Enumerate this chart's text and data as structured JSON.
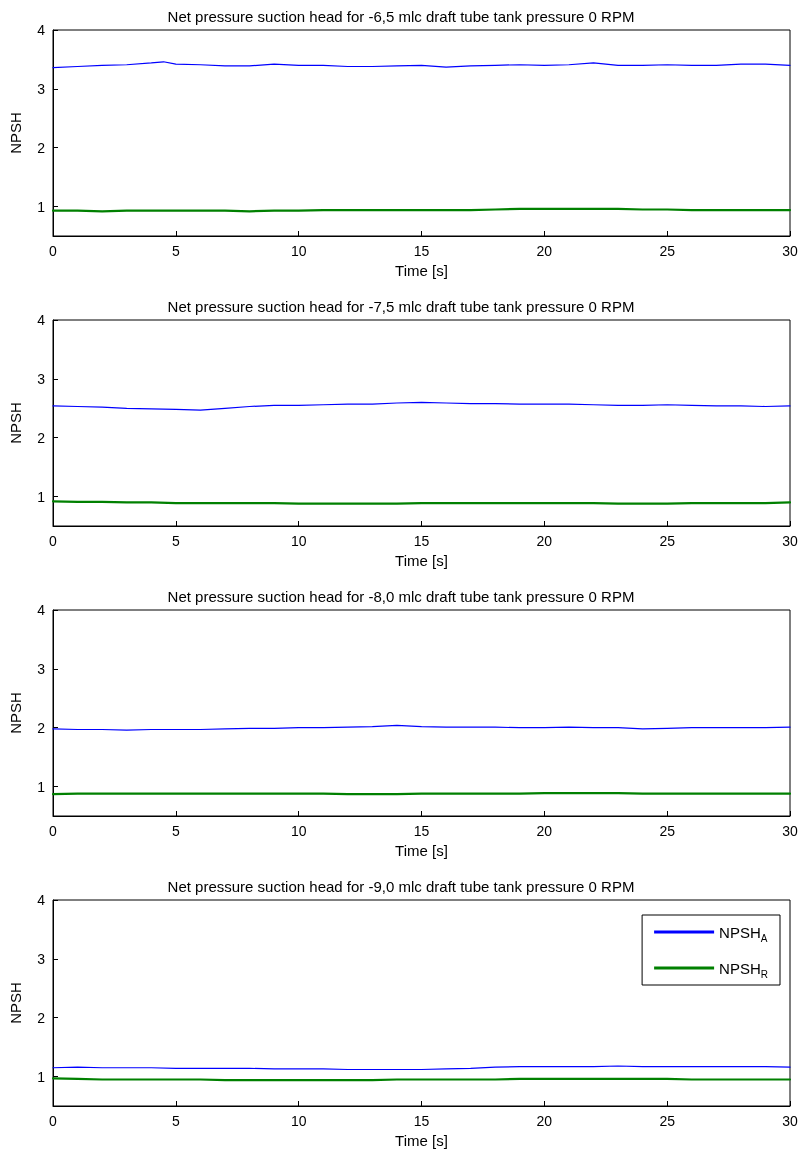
{
  "chart_data": [
    {
      "type": "line",
      "title": "Net pressure suction head for -6,5 mlc draft tube tank pressure 0 RPM",
      "xlabel": "Time [s]",
      "ylabel": "NPSH",
      "xlim": [
        0,
        30
      ],
      "xticks": [
        0,
        5,
        10,
        15,
        20,
        25,
        30
      ],
      "ylim": [
        0.5,
        4
      ],
      "yticks": [
        1,
        2,
        3,
        4
      ],
      "legend": false,
      "x": [
        0,
        1,
        2,
        3,
        4,
        4.5,
        5,
        6,
        7,
        8,
        9,
        10,
        11,
        12,
        13,
        14,
        15,
        16,
        17,
        18,
        19,
        20,
        21,
        22,
        23,
        24,
        25,
        26,
        27,
        28,
        29,
        30
      ],
      "series": [
        {
          "color": "#0000ff",
          "values": [
            3.36,
            3.38,
            3.4,
            3.41,
            3.44,
            3.46,
            3.42,
            3.41,
            3.39,
            3.39,
            3.42,
            3.4,
            3.4,
            3.38,
            3.38,
            3.39,
            3.4,
            3.37,
            3.39,
            3.4,
            3.41,
            3.4,
            3.41,
            3.44,
            3.4,
            3.4,
            3.41,
            3.4,
            3.4,
            3.42,
            3.42,
            3.4
          ]
        },
        {
          "color": "#008000",
          "values": [
            0.93,
            0.93,
            0.92,
            0.93,
            0.93,
            0.93,
            0.93,
            0.93,
            0.93,
            0.92,
            0.93,
            0.93,
            0.94,
            0.94,
            0.94,
            0.94,
            0.94,
            0.94,
            0.94,
            0.95,
            0.96,
            0.96,
            0.96,
            0.96,
            0.96,
            0.95,
            0.95,
            0.94,
            0.94,
            0.94,
            0.94,
            0.94
          ]
        }
      ]
    },
    {
      "type": "line",
      "title": "Net pressure suction head for -7,5 mlc draft tube tank pressure 0 RPM",
      "xlabel": "Time [s]",
      "ylabel": "NPSH",
      "xlim": [
        0,
        30
      ],
      "xticks": [
        0,
        5,
        10,
        15,
        20,
        25,
        30
      ],
      "ylim": [
        0.5,
        4
      ],
      "yticks": [
        1,
        2,
        3,
        4
      ],
      "legend": false,
      "x": [
        0,
        1,
        2,
        3,
        4,
        5,
        6,
        7,
        8,
        9,
        10,
        11,
        12,
        13,
        14,
        15,
        16,
        17,
        18,
        19,
        20,
        21,
        22,
        23,
        24,
        25,
        26,
        27,
        28,
        29,
        30
      ],
      "series": [
        {
          "color": "#0000ff",
          "values": [
            2.54,
            2.53,
            2.52,
            2.5,
            2.49,
            2.48,
            2.47,
            2.5,
            2.53,
            2.55,
            2.55,
            2.56,
            2.57,
            2.57,
            2.59,
            2.6,
            2.59,
            2.58,
            2.58,
            2.57,
            2.57,
            2.57,
            2.56,
            2.55,
            2.55,
            2.56,
            2.55,
            2.54,
            2.54,
            2.53,
            2.54
          ]
        },
        {
          "color": "#008000",
          "values": [
            0.92,
            0.91,
            0.91,
            0.9,
            0.9,
            0.89,
            0.89,
            0.89,
            0.89,
            0.89,
            0.88,
            0.88,
            0.88,
            0.88,
            0.88,
            0.89,
            0.89,
            0.89,
            0.89,
            0.89,
            0.89,
            0.89,
            0.89,
            0.88,
            0.88,
            0.88,
            0.89,
            0.89,
            0.89,
            0.89,
            0.9
          ]
        }
      ]
    },
    {
      "type": "line",
      "title": "Net pressure suction head for -8,0 mlc draft tube tank pressure 0 RPM",
      "xlabel": "Time [s]",
      "ylabel": "NPSH",
      "xlim": [
        0,
        30
      ],
      "xticks": [
        0,
        5,
        10,
        15,
        20,
        25,
        30
      ],
      "ylim": [
        0.5,
        4
      ],
      "yticks": [
        1,
        2,
        3,
        4
      ],
      "legend": false,
      "x": [
        0,
        1,
        2,
        3,
        4,
        5,
        6,
        7,
        8,
        9,
        10,
        11,
        12,
        13,
        14,
        15,
        16,
        17,
        18,
        19,
        20,
        21,
        22,
        23,
        24,
        25,
        26,
        27,
        28,
        29,
        30
      ],
      "series": [
        {
          "color": "#0000ff",
          "values": [
            1.98,
            1.97,
            1.97,
            1.96,
            1.97,
            1.97,
            1.97,
            1.98,
            1.99,
            1.99,
            2.0,
            2.0,
            2.01,
            2.02,
            2.04,
            2.02,
            2.01,
            2.01,
            2.01,
            2.0,
            2.0,
            2.01,
            2.0,
            2.0,
            1.98,
            1.99,
            2.0,
            2.0,
            2.0,
            2.0,
            2.01
          ]
        },
        {
          "color": "#008000",
          "values": [
            0.87,
            0.88,
            0.88,
            0.88,
            0.88,
            0.88,
            0.88,
            0.88,
            0.88,
            0.88,
            0.88,
            0.88,
            0.87,
            0.87,
            0.87,
            0.88,
            0.88,
            0.88,
            0.88,
            0.88,
            0.89,
            0.89,
            0.89,
            0.89,
            0.88,
            0.88,
            0.88,
            0.88,
            0.88,
            0.88,
            0.88
          ]
        }
      ]
    },
    {
      "type": "line",
      "title": "Net pressure suction head for -9,0 mlc draft tube tank pressure 0 RPM",
      "xlabel": "Time [s]",
      "ylabel": "NPSH",
      "xlim": [
        0,
        30
      ],
      "xticks": [
        0,
        5,
        10,
        15,
        20,
        25,
        30
      ],
      "ylim": [
        0.5,
        4
      ],
      "yticks": [
        1,
        2,
        3,
        4
      ],
      "legend": "top right",
      "x": [
        0,
        1,
        2,
        3,
        4,
        5,
        6,
        7,
        8,
        9,
        10,
        11,
        12,
        13,
        14,
        15,
        16,
        17,
        18,
        19,
        20,
        21,
        22,
        23,
        24,
        25,
        26,
        27,
        28,
        29,
        30
      ],
      "series": [
        {
          "name": "NPSH$_{A}$",
          "color": "#0000ff",
          "values": [
            1.15,
            1.16,
            1.15,
            1.15,
            1.15,
            1.14,
            1.14,
            1.14,
            1.14,
            1.13,
            1.13,
            1.13,
            1.12,
            1.12,
            1.12,
            1.12,
            1.13,
            1.14,
            1.16,
            1.17,
            1.17,
            1.17,
            1.17,
            1.18,
            1.17,
            1.17,
            1.17,
            1.17,
            1.17,
            1.17,
            1.16
          ]
        },
        {
          "name": "NPSH$_{R}$",
          "color": "#008000",
          "values": [
            0.97,
            0.96,
            0.95,
            0.95,
            0.95,
            0.95,
            0.95,
            0.94,
            0.94,
            0.94,
            0.94,
            0.94,
            0.94,
            0.94,
            0.95,
            0.95,
            0.95,
            0.95,
            0.95,
            0.96,
            0.96,
            0.96,
            0.96,
            0.96,
            0.96,
            0.96,
            0.95,
            0.95,
            0.95,
            0.95,
            0.95
          ]
        }
      ]
    }
  ]
}
